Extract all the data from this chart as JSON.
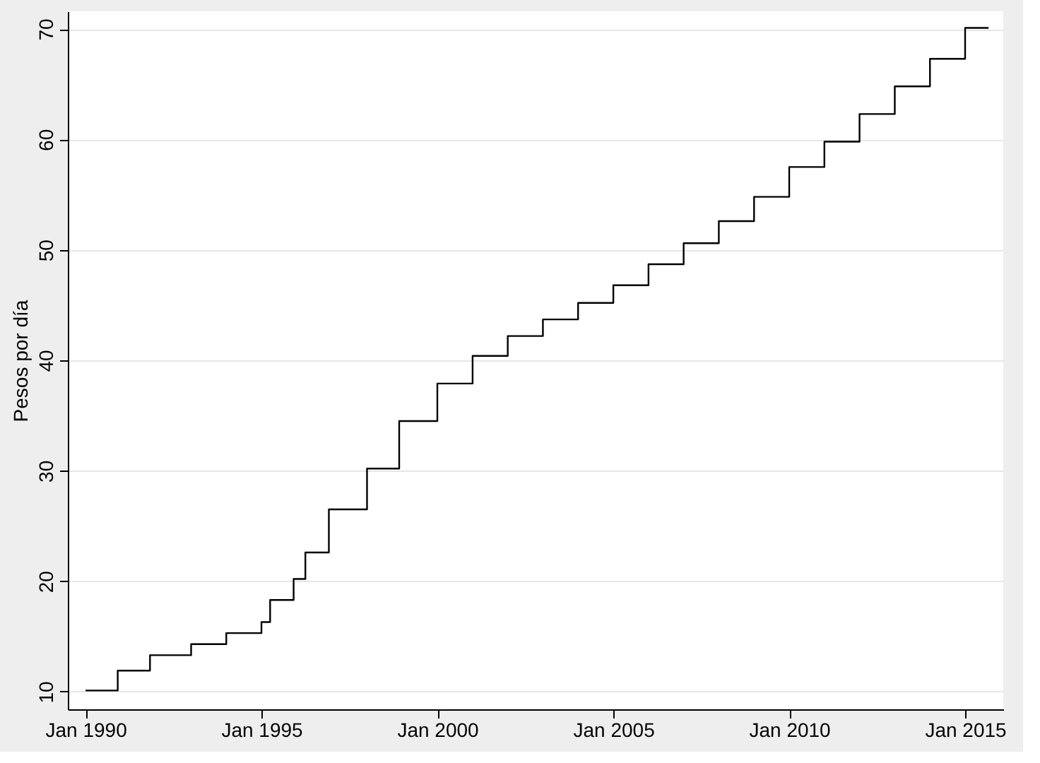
{
  "chart_data": {
    "type": "step",
    "ylabel": "Pesos por día",
    "x": [
      "1990-01",
      "1990-12",
      "1991-11",
      "1993-01",
      "1994-01",
      "1995-01",
      "1995-04",
      "1995-12",
      "1996-04",
      "1996-12",
      "1998-01",
      "1998-12",
      "2000-01",
      "2001-01",
      "2002-01",
      "2003-01",
      "2004-01",
      "2005-01",
      "2006-01",
      "2007-01",
      "2008-01",
      "2009-01",
      "2010-01",
      "2011-01",
      "2012-01",
      "2013-01",
      "2014-01",
      "2015-01",
      "2015-09"
    ],
    "series": [
      {
        "color": "#000000",
        "values": [
          10.1,
          11.9,
          13.3,
          14.3,
          15.3,
          16.3,
          18.3,
          20.2,
          22.6,
          26.5,
          30.2,
          34.5,
          37.9,
          40.4,
          42.2,
          43.7,
          45.2,
          46.8,
          48.7,
          50.6,
          52.6,
          54.8,
          57.5,
          59.8,
          62.3,
          64.8,
          67.3,
          70.1,
          70.1
        ]
      }
    ],
    "xlim": [
      "1989-07",
      "2016-02"
    ],
    "xticks": [
      {
        "value": "1990-01",
        "label": "Jan 1990"
      },
      {
        "value": "1995-01",
        "label": "Jan 1995"
      },
      {
        "value": "2000-01",
        "label": "Jan 2000"
      },
      {
        "value": "2005-01",
        "label": "Jan 2005"
      },
      {
        "value": "2010-01",
        "label": "Jan 2010"
      },
      {
        "value": "2015-01",
        "label": "Jan 2015"
      }
    ],
    "ylim": [
      8.4,
      71.6
    ],
    "yticks": [
      10,
      20,
      30,
      40,
      50,
      60,
      70
    ],
    "grid": "y"
  }
}
